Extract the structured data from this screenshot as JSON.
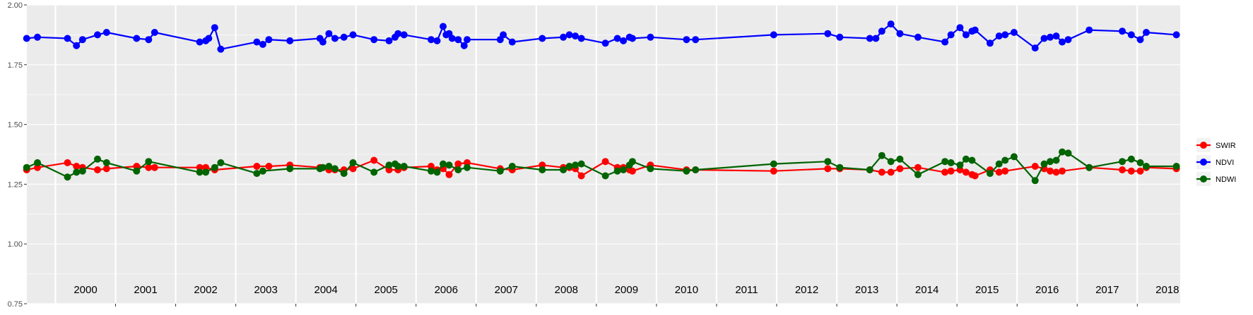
{
  "chart_data": {
    "type": "line",
    "title": "",
    "xlabel": "",
    "ylabel": "",
    "ylim": [
      0.75,
      2.0
    ],
    "xlim": [
      1999.5,
      2018.7
    ],
    "y_ticks": [
      "0.75",
      "1.00",
      "1.25",
      "1.50",
      "1.75",
      "2.00"
    ],
    "year_labels": [
      "2000",
      "2001",
      "2002",
      "2003",
      "2004",
      "2005",
      "2006",
      "2007",
      "2008",
      "2009",
      "2010",
      "2011",
      "2012",
      "2013",
      "2014",
      "2015",
      "2016",
      "2017",
      "2018"
    ],
    "grid": true,
    "legend_position": "right",
    "series": [
      {
        "name": "SWIR",
        "color": "#FF0000",
        "points": [
          [
            1999.52,
            1.31
          ],
          [
            1999.7,
            1.32
          ],
          [
            2000.2,
            1.34
          ],
          [
            2000.35,
            1.325
          ],
          [
            2000.45,
            1.32
          ],
          [
            2000.7,
            1.31
          ],
          [
            2000.85,
            1.315
          ],
          [
            2001.35,
            1.325
          ],
          [
            2001.55,
            1.32
          ],
          [
            2001.65,
            1.32
          ],
          [
            2002.4,
            1.32
          ],
          [
            2002.5,
            1.32
          ],
          [
            2002.65,
            1.31
          ],
          [
            2003.35,
            1.325
          ],
          [
            2003.55,
            1.325
          ],
          [
            2003.9,
            1.33
          ],
          [
            2004.4,
            1.32
          ],
          [
            2004.55,
            1.31
          ],
          [
            2004.65,
            1.31
          ],
          [
            2004.8,
            1.31
          ],
          [
            2004.95,
            1.315
          ],
          [
            2005.3,
            1.35
          ],
          [
            2005.55,
            1.31
          ],
          [
            2005.7,
            1.31
          ],
          [
            2005.8,
            1.32
          ],
          [
            2006.25,
            1.325
          ],
          [
            2006.35,
            1.31
          ],
          [
            2006.45,
            1.315
          ],
          [
            2006.55,
            1.29
          ],
          [
            2006.7,
            1.335
          ],
          [
            2006.85,
            1.34
          ],
          [
            2007.4,
            1.315
          ],
          [
            2007.6,
            1.31
          ],
          [
            2008.1,
            1.33
          ],
          [
            2008.45,
            1.32
          ],
          [
            2008.55,
            1.32
          ],
          [
            2008.65,
            1.315
          ],
          [
            2008.75,
            1.285
          ],
          [
            2009.15,
            1.345
          ],
          [
            2009.35,
            1.32
          ],
          [
            2009.45,
            1.32
          ],
          [
            2009.55,
            1.31
          ],
          [
            2009.6,
            1.305
          ],
          [
            2009.9,
            1.33
          ],
          [
            2010.5,
            1.31
          ],
          [
            2010.65,
            1.31
          ],
          [
            2011.95,
            1.305
          ],
          [
            2012.85,
            1.315
          ],
          [
            2013.05,
            1.315
          ],
          [
            2013.55,
            1.31
          ],
          [
            2013.75,
            1.3
          ],
          [
            2013.9,
            1.3
          ],
          [
            2014.05,
            1.315
          ],
          [
            2014.35,
            1.32
          ],
          [
            2014.8,
            1.3
          ],
          [
            2014.9,
            1.305
          ],
          [
            2015.05,
            1.31
          ],
          [
            2015.15,
            1.3
          ],
          [
            2015.25,
            1.29
          ],
          [
            2015.3,
            1.285
          ],
          [
            2015.55,
            1.31
          ],
          [
            2015.7,
            1.3
          ],
          [
            2015.8,
            1.305
          ],
          [
            2016.3,
            1.325
          ],
          [
            2016.45,
            1.315
          ],
          [
            2016.55,
            1.305
          ],
          [
            2016.65,
            1.3
          ],
          [
            2016.75,
            1.305
          ],
          [
            2017.2,
            1.32
          ],
          [
            2017.75,
            1.31
          ],
          [
            2017.9,
            1.305
          ],
          [
            2018.05,
            1.305
          ],
          [
            2018.15,
            1.32
          ],
          [
            2018.65,
            1.315
          ]
        ]
      },
      {
        "name": "NDVI",
        "color": "#0000FF",
        "points": [
          [
            1999.52,
            1.86
          ],
          [
            1999.7,
            1.865
          ],
          [
            2000.2,
            1.86
          ],
          [
            2000.35,
            1.83
          ],
          [
            2000.45,
            1.855
          ],
          [
            2000.7,
            1.875
          ],
          [
            2000.85,
            1.885
          ],
          [
            2001.35,
            1.86
          ],
          [
            2001.55,
            1.855
          ],
          [
            2001.65,
            1.885
          ],
          [
            2002.4,
            1.845
          ],
          [
            2002.5,
            1.85
          ],
          [
            2002.55,
            1.86
          ],
          [
            2002.65,
            1.905
          ],
          [
            2002.75,
            1.815
          ],
          [
            2003.35,
            1.845
          ],
          [
            2003.45,
            1.835
          ],
          [
            2003.55,
            1.855
          ],
          [
            2003.9,
            1.85
          ],
          [
            2004.4,
            1.86
          ],
          [
            2004.45,
            1.845
          ],
          [
            2004.55,
            1.88
          ],
          [
            2004.65,
            1.86
          ],
          [
            2004.8,
            1.865
          ],
          [
            2004.95,
            1.875
          ],
          [
            2005.3,
            1.855
          ],
          [
            2005.55,
            1.85
          ],
          [
            2005.65,
            1.865
          ],
          [
            2005.7,
            1.88
          ],
          [
            2005.8,
            1.875
          ],
          [
            2006.25,
            1.855
          ],
          [
            2006.35,
            1.85
          ],
          [
            2006.45,
            1.91
          ],
          [
            2006.5,
            1.875
          ],
          [
            2006.55,
            1.88
          ],
          [
            2006.6,
            1.86
          ],
          [
            2006.7,
            1.855
          ],
          [
            2006.8,
            1.83
          ],
          [
            2006.85,
            1.855
          ],
          [
            2007.4,
            1.855
          ],
          [
            2007.45,
            1.875
          ],
          [
            2007.6,
            1.845
          ],
          [
            2008.1,
            1.86
          ],
          [
            2008.45,
            1.865
          ],
          [
            2008.55,
            1.875
          ],
          [
            2008.65,
            1.87
          ],
          [
            2008.75,
            1.86
          ],
          [
            2009.15,
            1.84
          ],
          [
            2009.35,
            1.86
          ],
          [
            2009.45,
            1.85
          ],
          [
            2009.55,
            1.865
          ],
          [
            2009.6,
            1.86
          ],
          [
            2009.9,
            1.865
          ],
          [
            2010.5,
            1.855
          ],
          [
            2010.65,
            1.855
          ],
          [
            2011.95,
            1.875
          ],
          [
            2012.85,
            1.88
          ],
          [
            2013.05,
            1.865
          ],
          [
            2013.55,
            1.86
          ],
          [
            2013.65,
            1.86
          ],
          [
            2013.75,
            1.89
          ],
          [
            2013.9,
            1.92
          ],
          [
            2014.05,
            1.88
          ],
          [
            2014.35,
            1.865
          ],
          [
            2014.8,
            1.845
          ],
          [
            2014.9,
            1.875
          ],
          [
            2015.05,
            1.905
          ],
          [
            2015.15,
            1.875
          ],
          [
            2015.25,
            1.89
          ],
          [
            2015.3,
            1.895
          ],
          [
            2015.55,
            1.84
          ],
          [
            2015.7,
            1.87
          ],
          [
            2015.8,
            1.875
          ],
          [
            2015.95,
            1.885
          ],
          [
            2016.3,
            1.82
          ],
          [
            2016.45,
            1.86
          ],
          [
            2016.55,
            1.865
          ],
          [
            2016.65,
            1.87
          ],
          [
            2016.75,
            1.845
          ],
          [
            2016.85,
            1.855
          ],
          [
            2017.2,
            1.895
          ],
          [
            2017.75,
            1.89
          ],
          [
            2017.9,
            1.875
          ],
          [
            2018.05,
            1.855
          ],
          [
            2018.15,
            1.885
          ],
          [
            2018.65,
            1.875
          ]
        ]
      },
      {
        "name": "NDWI",
        "color": "#006400",
        "points": [
          [
            1999.52,
            1.32
          ],
          [
            1999.7,
            1.34
          ],
          [
            2000.2,
            1.28
          ],
          [
            2000.35,
            1.3
          ],
          [
            2000.45,
            1.305
          ],
          [
            2000.7,
            1.355
          ],
          [
            2000.85,
            1.34
          ],
          [
            2001.35,
            1.305
          ],
          [
            2001.55,
            1.345
          ],
          [
            2002.4,
            1.3
          ],
          [
            2002.5,
            1.3
          ],
          [
            2002.65,
            1.32
          ],
          [
            2002.75,
            1.34
          ],
          [
            2003.35,
            1.295
          ],
          [
            2003.45,
            1.305
          ],
          [
            2003.9,
            1.315
          ],
          [
            2004.4,
            1.315
          ],
          [
            2004.45,
            1.32
          ],
          [
            2004.55,
            1.325
          ],
          [
            2004.65,
            1.315
          ],
          [
            2004.8,
            1.295
          ],
          [
            2004.95,
            1.34
          ],
          [
            2005.3,
            1.3
          ],
          [
            2005.55,
            1.33
          ],
          [
            2005.65,
            1.335
          ],
          [
            2005.7,
            1.325
          ],
          [
            2005.8,
            1.325
          ],
          [
            2006.25,
            1.305
          ],
          [
            2006.35,
            1.3
          ],
          [
            2006.45,
            1.335
          ],
          [
            2006.55,
            1.33
          ],
          [
            2006.7,
            1.31
          ],
          [
            2006.85,
            1.32
          ],
          [
            2007.4,
            1.305
          ],
          [
            2007.6,
            1.325
          ],
          [
            2008.1,
            1.31
          ],
          [
            2008.45,
            1.31
          ],
          [
            2008.55,
            1.325
          ],
          [
            2008.65,
            1.33
          ],
          [
            2008.75,
            1.335
          ],
          [
            2009.15,
            1.285
          ],
          [
            2009.35,
            1.305
          ],
          [
            2009.45,
            1.31
          ],
          [
            2009.55,
            1.33
          ],
          [
            2009.6,
            1.345
          ],
          [
            2009.9,
            1.315
          ],
          [
            2010.5,
            1.305
          ],
          [
            2010.65,
            1.31
          ],
          [
            2011.95,
            1.335
          ],
          [
            2012.85,
            1.345
          ],
          [
            2013.05,
            1.32
          ],
          [
            2013.55,
            1.31
          ],
          [
            2013.75,
            1.37
          ],
          [
            2013.9,
            1.345
          ],
          [
            2014.05,
            1.355
          ],
          [
            2014.35,
            1.29
          ],
          [
            2014.8,
            1.345
          ],
          [
            2014.9,
            1.34
          ],
          [
            2015.05,
            1.33
          ],
          [
            2015.15,
            1.355
          ],
          [
            2015.25,
            1.35
          ],
          [
            2015.55,
            1.295
          ],
          [
            2015.7,
            1.335
          ],
          [
            2015.8,
            1.35
          ],
          [
            2015.95,
            1.365
          ],
          [
            2016.3,
            1.265
          ],
          [
            2016.45,
            1.335
          ],
          [
            2016.55,
            1.345
          ],
          [
            2016.65,
            1.35
          ],
          [
            2016.75,
            1.385
          ],
          [
            2016.85,
            1.38
          ],
          [
            2017.2,
            1.32
          ],
          [
            2017.75,
            1.345
          ],
          [
            2017.9,
            1.355
          ],
          [
            2018.05,
            1.34
          ],
          [
            2018.15,
            1.325
          ],
          [
            2018.65,
            1.325
          ]
        ]
      }
    ]
  }
}
